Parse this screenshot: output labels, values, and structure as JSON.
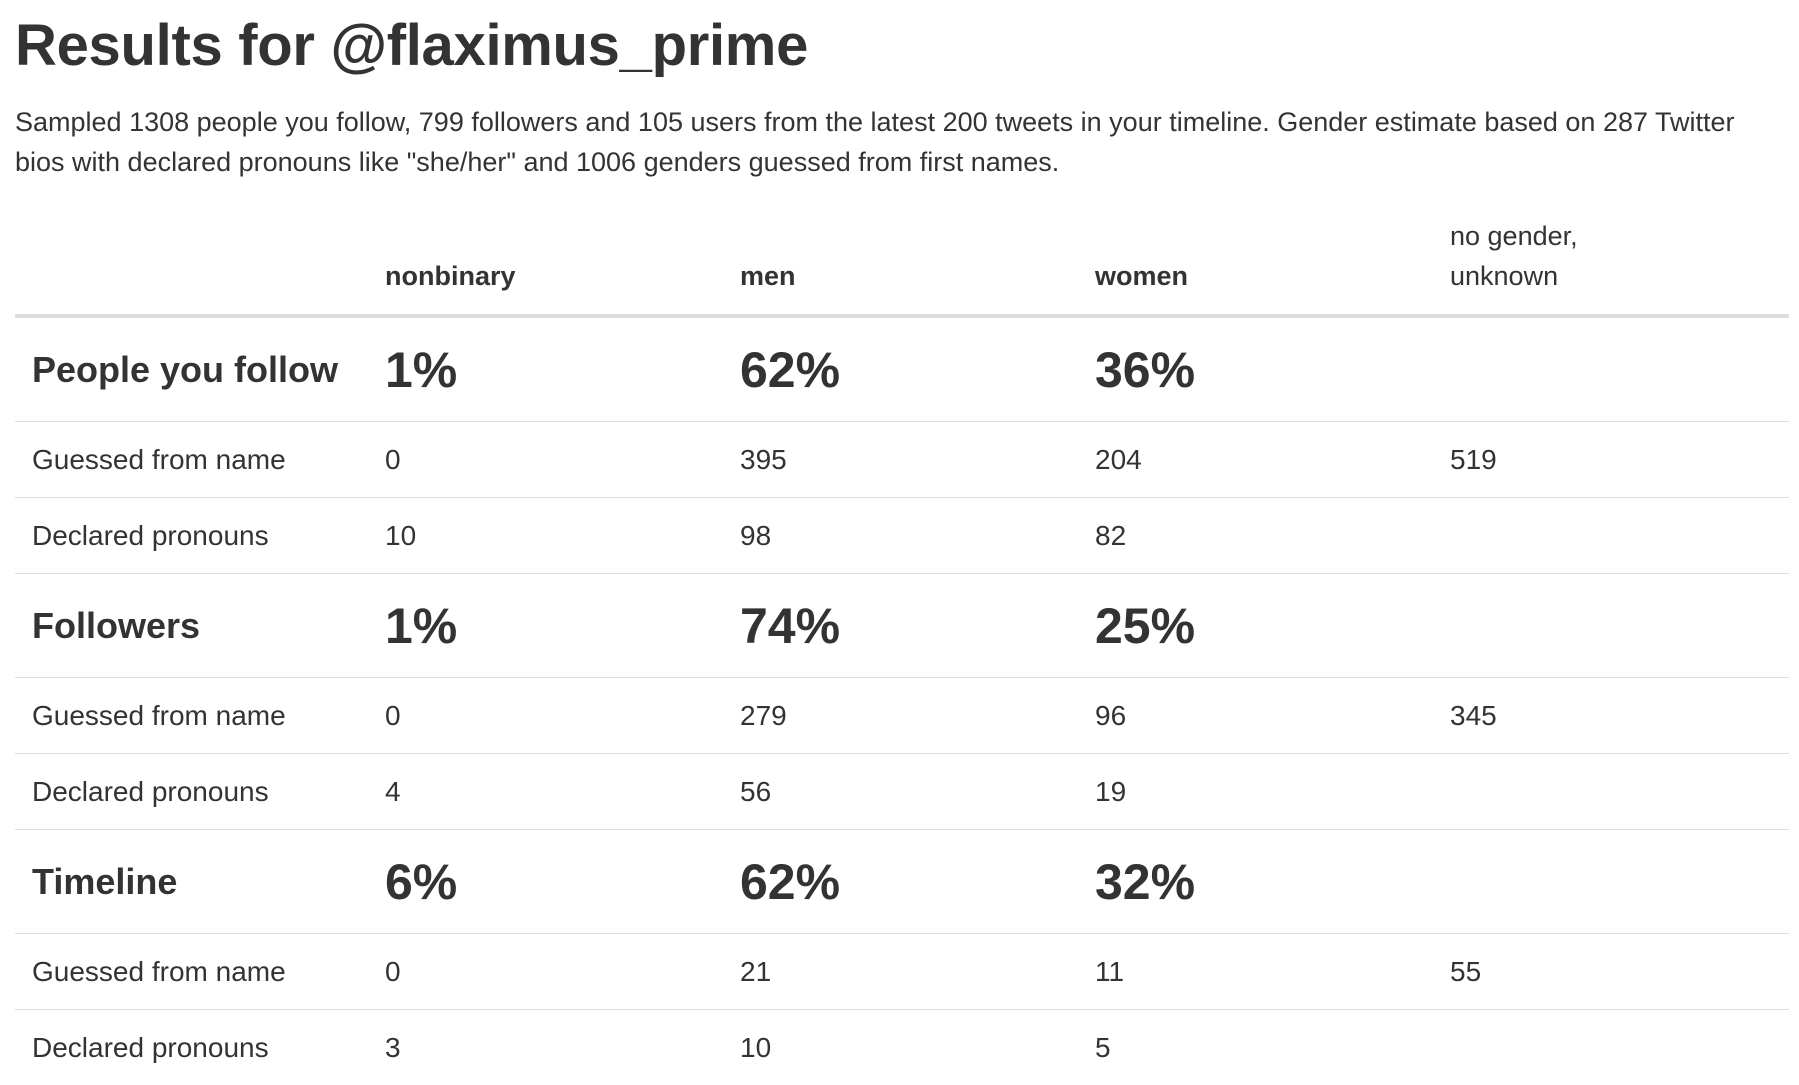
{
  "title": "Results for @flaximus_prime",
  "summary": "Sampled 1308 people you follow, 799 followers and 105 users from the latest 200 tweets in your timeline. Gender estimate based on 287 Twitter bios with declared pronouns like \"she/her\" and 1006 genders guessed from first names.",
  "table": {
    "headers": {
      "label": "",
      "nonbinary": "nonbinary",
      "men": "men",
      "women": "women",
      "unknown": "no gender, unknown"
    },
    "sections": [
      {
        "title": "People you follow",
        "nonbinary_pct": "1%",
        "men_pct": "62%",
        "women_pct": "36%",
        "guessed": {
          "label": "Guessed from name",
          "nonbinary": "0",
          "men": "395",
          "women": "204",
          "unknown": "519"
        },
        "declared": {
          "label": "Declared pronouns",
          "nonbinary": "10",
          "men": "98",
          "women": "82",
          "unknown": ""
        }
      },
      {
        "title": "Followers",
        "nonbinary_pct": "1%",
        "men_pct": "74%",
        "women_pct": "25%",
        "guessed": {
          "label": "Guessed from name",
          "nonbinary": "0",
          "men": "279",
          "women": "96",
          "unknown": "345"
        },
        "declared": {
          "label": "Declared pronouns",
          "nonbinary": "4",
          "men": "56",
          "women": "19",
          "unknown": ""
        }
      },
      {
        "title": "Timeline",
        "nonbinary_pct": "6%",
        "men_pct": "62%",
        "women_pct": "32%",
        "guessed": {
          "label": "Guessed from name",
          "nonbinary": "0",
          "men": "21",
          "women": "11",
          "unknown": "55"
        },
        "declared": {
          "label": "Declared pronouns",
          "nonbinary": "3",
          "men": "10",
          "women": "5",
          "unknown": ""
        }
      }
    ]
  }
}
